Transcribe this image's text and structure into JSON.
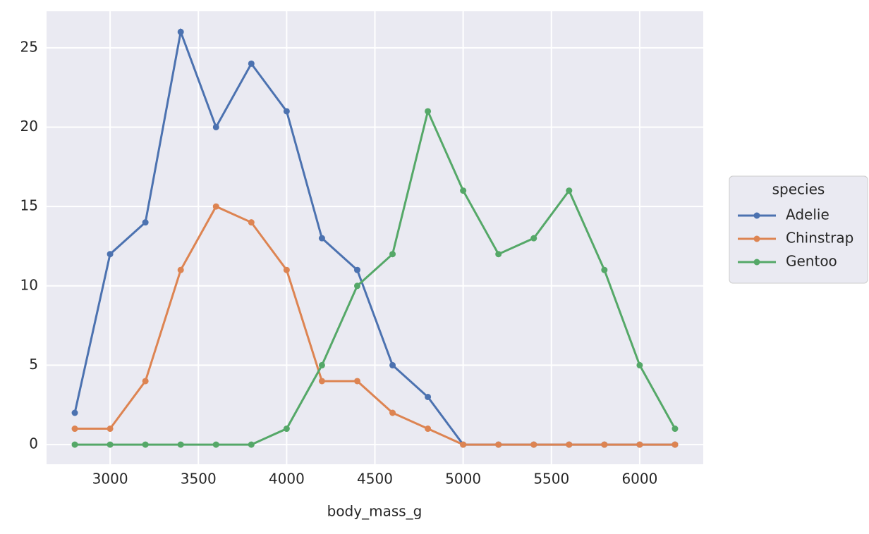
{
  "chart_data": {
    "type": "line",
    "x": [
      2800,
      3000,
      3200,
      3400,
      3600,
      3800,
      4000,
      4200,
      4400,
      4600,
      4800,
      5000,
      5200,
      5400,
      5600,
      5800,
      6000,
      6200
    ],
    "series": [
      {
        "name": "Adelie",
        "color": "#4c72b0",
        "values": [
          2,
          12,
          14,
          26,
          20,
          24,
          21,
          13,
          11,
          5,
          3,
          0,
          0,
          0,
          0,
          0,
          0,
          0
        ]
      },
      {
        "name": "Chinstrap",
        "color": "#dd8452",
        "values": [
          1,
          1,
          4,
          11,
          15,
          14,
          11,
          4,
          4,
          2,
          1,
          0,
          0,
          0,
          0,
          0,
          0,
          0
        ]
      },
      {
        "name": "Gentoo",
        "color": "#55a868",
        "values": [
          0,
          0,
          0,
          0,
          0,
          0,
          1,
          5,
          10,
          12,
          21,
          16,
          12,
          13,
          16,
          11,
          5,
          1
        ]
      }
    ],
    "xlabel": "body_mass_g",
    "legend_title": "species",
    "xlim": [
      2640,
      6360
    ],
    "xticks": [
      3000,
      3500,
      4000,
      4500,
      5000,
      5500,
      6000
    ],
    "ylim": [
      -1.24,
      27.3
    ],
    "yticks": [
      0,
      5,
      10,
      15,
      20,
      25
    ],
    "grid": true,
    "legend": "right"
  }
}
